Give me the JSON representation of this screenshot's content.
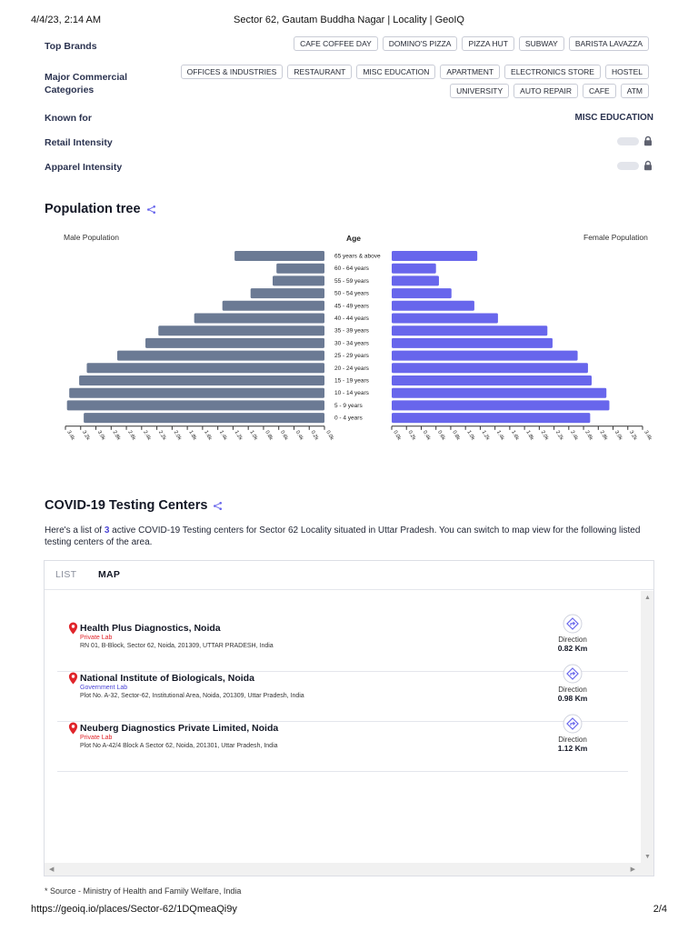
{
  "browser": {
    "timestamp": "4/4/23, 2:14 AM",
    "page_title": "Sector 62, Gautam Buddha Nagar | Locality | GeoIQ",
    "url": "https://geoiq.io/places/Sector-62/1DQmeaQi9y",
    "page_number": "2/4"
  },
  "profile": {
    "top_brands_label": "Top Brands",
    "top_brands": [
      "CAFE COFFEE DAY",
      "DOMINO'S PIZZA",
      "PIZZA HUT",
      "SUBWAY",
      "BARISTA LAVAZZA"
    ],
    "categories_label_1": "Major Commercial",
    "categories_label_2": "Categories",
    "categories_row1": [
      "OFFICES & INDUSTRIES",
      "RESTAURANT",
      "MISC EDUCATION",
      "APARTMENT",
      "ELECTRONICS STORE",
      "HOSTEL"
    ],
    "categories_row2": [
      "UNIVERSITY",
      "AUTO REPAIR",
      "CAFE",
      "ATM"
    ],
    "known_for_label": "Known for",
    "known_for_value": "MISC EDUCATION",
    "retail_label": "Retail Intensity",
    "apparel_label": "Apparel Intensity"
  },
  "population": {
    "title": "Population tree",
    "male_label": "Male Population",
    "female_label": "Female Population",
    "age_label": "Age"
  },
  "chart_data": {
    "type": "bar",
    "orientation": "horizontal-mirrored",
    "categories": [
      "65 years & above",
      "60 - 64 years",
      "55 - 59 years",
      "50 - 54 years",
      "45 - 49 years",
      "40 - 44 years",
      "35 - 39 years",
      "30 - 34 years",
      "25 - 29 years",
      "20 - 24 years",
      "15 - 19 years",
      "10 - 14 years",
      "5 - 9 years",
      "0 - 4 years"
    ],
    "series": [
      {
        "name": "Male Population",
        "values": [
          1.18,
          0.63,
          0.68,
          0.97,
          1.34,
          1.71,
          2.18,
          2.35,
          2.72,
          3.12,
          3.22,
          3.35,
          3.38,
          3.16
        ]
      },
      {
        "name": "Female Population",
        "values": [
          1.16,
          0.6,
          0.64,
          0.81,
          1.12,
          1.44,
          2.11,
          2.18,
          2.52,
          2.66,
          2.71,
          2.91,
          2.95,
          2.69
        ]
      }
    ],
    "male_ticks": [
      "3.4k",
      "3.2k",
      "3.0k",
      "2.8k",
      "2.6k",
      "2.4k",
      "2.2k",
      "2.0k",
      "1.8k",
      "1.6k",
      "1.4k",
      "1.2k",
      "1.0k",
      "0.8k",
      "0.6k",
      "0.4k",
      "0.2k",
      "0.0k"
    ],
    "female_ticks": [
      "0.0k",
      "0.2k",
      "0.4k",
      "0.6k",
      "0.8k",
      "1.0k",
      "1.2k",
      "1.4k",
      "1.6k",
      "1.8k",
      "2.0k",
      "2.2k",
      "2.4k",
      "2.6k",
      "2.8k",
      "3.0k",
      "3.2k",
      "3.4k"
    ],
    "xlim": [
      0,
      3.4
    ],
    "colors": {
      "male": "#6b7a94",
      "female": "#6866ec"
    }
  },
  "covid": {
    "title": "COVID-19 Testing Centers",
    "intro_pre": "Here's a list of ",
    "intro_count": "3",
    "intro_post": " active COVID-19 Testing centers for Sector 62 Locality situated in Uttar Pradesh. You can switch to map view for the following listed testing centers of the area.",
    "tab_list": "LIST",
    "tab_map": "MAP",
    "centres": [
      {
        "name": "Health Plus Diagnostics, Noida",
        "type": "Private Lab",
        "type_color": "#e0252b",
        "address": "RN 01, B-Block, Sector 62, Noida, 201309, UTTAR PRADESH, India",
        "direction_label": "Direction",
        "distance": "0.82 Km"
      },
      {
        "name": "National Institute of Biologicals, Noida",
        "type": "Government Lab",
        "type_color": "#4b45d6",
        "address": "Plot No. A-32, Sector-62, Institutional Area, Noida, 201309, Uttar Pradesh, India",
        "direction_label": "Direction",
        "distance": "0.98 Km"
      },
      {
        "name": "Neuberg Diagnostics Private Limited, Noida",
        "type": "Private Lab",
        "type_color": "#e0252b",
        "address": "Plot No A-42/4 Block A Sector 62, Noida, 201301, Uttar Pradesh, India",
        "direction_label": "Direction",
        "distance": "1.12 Km"
      }
    ],
    "source": "* Source - Ministry of Health and Family Welfare, India"
  },
  "icons": {
    "share": "share-icon",
    "lock": "lock-icon",
    "pin": "location-pin-icon",
    "direction": "direction-icon"
  }
}
